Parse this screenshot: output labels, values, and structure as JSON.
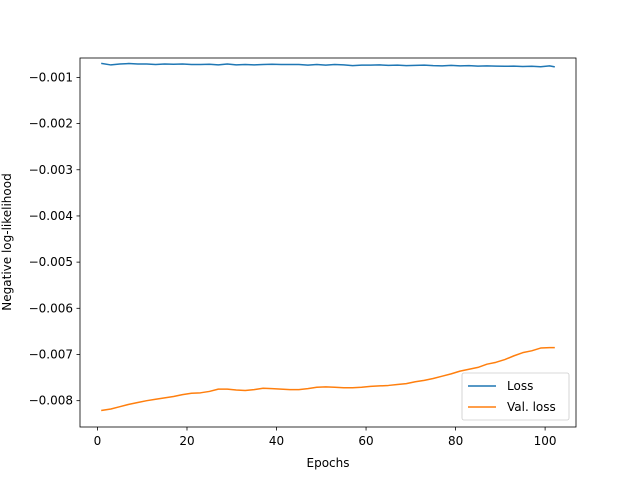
{
  "chart_data": {
    "type": "line",
    "title": "",
    "xlabel": "Epochs",
    "ylabel": "Negative log-likelihood",
    "xlim": [
      -3.9,
      106.9
    ],
    "ylim": [
      -0.00857,
      -0.00058
    ],
    "xticks": [
      0,
      20,
      40,
      60,
      80,
      100
    ],
    "xtick_labels": [
      "0",
      "20",
      "40",
      "60",
      "80",
      "100"
    ],
    "yticks": [
      -0.001,
      -0.002,
      -0.003,
      -0.004,
      -0.005,
      -0.006,
      -0.007,
      -0.008
    ],
    "ytick_labels": [
      "−0.001",
      "−0.002",
      "−0.003",
      "−0.004",
      "−0.005",
      "−0.006",
      "−0.007",
      "−0.008"
    ],
    "grid": false,
    "legend_position": "lower-right",
    "series": [
      {
        "name": "Loss",
        "color": "#1f77b4",
        "x": [
          1,
          3,
          5,
          7,
          9,
          11,
          13,
          15,
          17,
          19,
          21,
          23,
          25,
          27,
          29,
          31,
          33,
          35,
          37,
          39,
          41,
          43,
          45,
          47,
          49,
          51,
          53,
          55,
          57,
          59,
          61,
          63,
          65,
          67,
          69,
          71,
          73,
          75,
          77,
          79,
          81,
          83,
          85,
          87,
          89,
          91,
          93,
          95,
          97,
          99,
          101,
          102
        ],
        "y": [
          -0.0007,
          -0.00073,
          -0.00071,
          -0.0007,
          -0.00071,
          -0.00071,
          -0.00072,
          -0.00071,
          -0.000715,
          -0.00071,
          -0.00072,
          -0.00072,
          -0.000715,
          -0.00073,
          -0.00071,
          -0.00073,
          -0.00072,
          -0.00073,
          -0.00072,
          -0.000715,
          -0.00072,
          -0.00072,
          -0.00072,
          -0.000735,
          -0.00072,
          -0.000735,
          -0.00072,
          -0.00073,
          -0.000745,
          -0.000735,
          -0.000735,
          -0.00073,
          -0.00074,
          -0.000735,
          -0.000745,
          -0.00074,
          -0.000735,
          -0.000745,
          -0.00075,
          -0.00074,
          -0.00075,
          -0.000745,
          -0.000755,
          -0.00075,
          -0.000755,
          -0.00076,
          -0.000755,
          -0.000765,
          -0.00076,
          -0.00077,
          -0.00075,
          -0.00077
        ]
      },
      {
        "name": "Val. loss",
        "color": "#ff7f0e",
        "x": [
          1,
          3,
          5,
          7,
          9,
          11,
          13,
          15,
          17,
          19,
          21,
          23,
          25,
          27,
          29,
          31,
          33,
          35,
          37,
          39,
          41,
          43,
          45,
          47,
          49,
          51,
          53,
          55,
          57,
          59,
          61,
          63,
          65,
          67,
          69,
          71,
          73,
          75,
          77,
          79,
          81,
          83,
          85,
          87,
          89,
          91,
          93,
          95,
          97,
          99,
          101,
          102
        ],
        "y": [
          -0.00821,
          -0.00818,
          -0.00813,
          -0.00808,
          -0.00804,
          -0.008,
          -0.00797,
          -0.00794,
          -0.00791,
          -0.00787,
          -0.00784,
          -0.00783,
          -0.0078,
          -0.00775,
          -0.00775,
          -0.00777,
          -0.00778,
          -0.00776,
          -0.00773,
          -0.00774,
          -0.00775,
          -0.00776,
          -0.00776,
          -0.00774,
          -0.00771,
          -0.0077,
          -0.00771,
          -0.00772,
          -0.00772,
          -0.00771,
          -0.00769,
          -0.00768,
          -0.00767,
          -0.00765,
          -0.00763,
          -0.00759,
          -0.00756,
          -0.00752,
          -0.00747,
          -0.00742,
          -0.00736,
          -0.00732,
          -0.00728,
          -0.00721,
          -0.00717,
          -0.00711,
          -0.00703,
          -0.00696,
          -0.00692,
          -0.00686,
          -0.00685,
          -0.00685
        ]
      }
    ]
  }
}
